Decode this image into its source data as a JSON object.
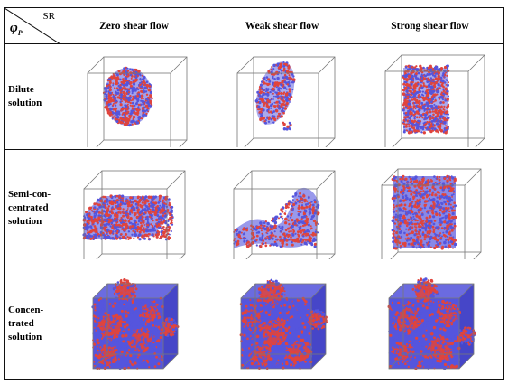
{
  "corner": {
    "phi_symbol": "φ",
    "phi_sub": "P",
    "sr_label": "SR"
  },
  "columns": [
    "Zero shear flow",
    "Weak shear flow",
    "Strong shear flow"
  ],
  "rows": [
    "Dilute\nsolution",
    "Semi-con-\ncentrated\nsolution",
    "Concen-\ntrated\nsolution"
  ],
  "colors": {
    "red_phase": "#e0443c",
    "blue_phase": "#5555dd",
    "box_edge": "#777777"
  }
}
